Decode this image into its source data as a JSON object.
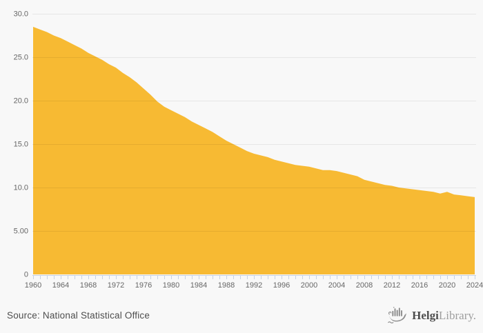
{
  "page": {
    "background": "#f8f8f8"
  },
  "colors": {
    "area_fill": "#f7ba33",
    "gridline": "rgba(0,0,0,0.07)",
    "axis_line": "#c7d2e2",
    "tick_label": "#666666",
    "source_text": "#4d4d4d",
    "logo_dark": "#4d4d4d",
    "logo_light": "#9e9e9e",
    "logo_icon": "#8d8d8d"
  },
  "chart_data": {
    "type": "area",
    "title": "",
    "xlabel": "",
    "ylabel": "",
    "legend": false,
    "grid": true,
    "ylim": [
      0,
      30
    ],
    "series_color": "#f7ba33",
    "x": [
      1960,
      1961,
      1962,
      1963,
      1964,
      1965,
      1966,
      1967,
      1968,
      1969,
      1970,
      1971,
      1972,
      1973,
      1974,
      1975,
      1976,
      1977,
      1978,
      1979,
      1980,
      1981,
      1982,
      1983,
      1984,
      1985,
      1986,
      1987,
      1988,
      1989,
      1990,
      1991,
      1992,
      1993,
      1994,
      1995,
      1996,
      1997,
      1998,
      1999,
      2000,
      2001,
      2002,
      2003,
      2004,
      2005,
      2006,
      2007,
      2008,
      2009,
      2010,
      2011,
      2012,
      2013,
      2014,
      2015,
      2016,
      2017,
      2018,
      2019,
      2020,
      2021,
      2022,
      2023,
      2024
    ],
    "values": [
      28.5,
      28.2,
      27.9,
      27.5,
      27.2,
      26.8,
      26.4,
      26.0,
      25.5,
      25.1,
      24.7,
      24.2,
      23.8,
      23.2,
      22.7,
      22.1,
      21.4,
      20.7,
      19.9,
      19.3,
      18.9,
      18.5,
      18.1,
      17.6,
      17.2,
      16.8,
      16.4,
      15.9,
      15.4,
      15.0,
      14.6,
      14.2,
      13.9,
      13.7,
      13.5,
      13.2,
      13.0,
      12.8,
      12.6,
      12.5,
      12.4,
      12.2,
      12.0,
      12.0,
      11.9,
      11.7,
      11.5,
      11.3,
      10.9,
      10.7,
      10.5,
      10.3,
      10.2,
      10.0,
      9.9,
      9.8,
      9.7,
      9.6,
      9.5,
      9.3,
      9.5,
      9.2,
      9.1,
      9.0,
      8.9
    ],
    "x_tick_labels": [
      "1960",
      "1964",
      "1968",
      "1972",
      "1976",
      "1980",
      "1984",
      "1988",
      "1992",
      "1996",
      "2000",
      "2004",
      "2008",
      "2012",
      "2016",
      "2020",
      "2024"
    ],
    "y_ticks": [
      {
        "value": 0,
        "label": "0"
      },
      {
        "value": 5,
        "label": "5.00"
      },
      {
        "value": 10,
        "label": "10.0"
      },
      {
        "value": 15,
        "label": "15.0"
      },
      {
        "value": 20,
        "label": "20.0"
      },
      {
        "value": 25,
        "label": "25.0"
      },
      {
        "value": 30,
        "label": "30.0"
      }
    ]
  },
  "footer": {
    "source": "Source: National Statistical Office",
    "logo": {
      "bold": "Helgi",
      "light": "Library."
    }
  }
}
